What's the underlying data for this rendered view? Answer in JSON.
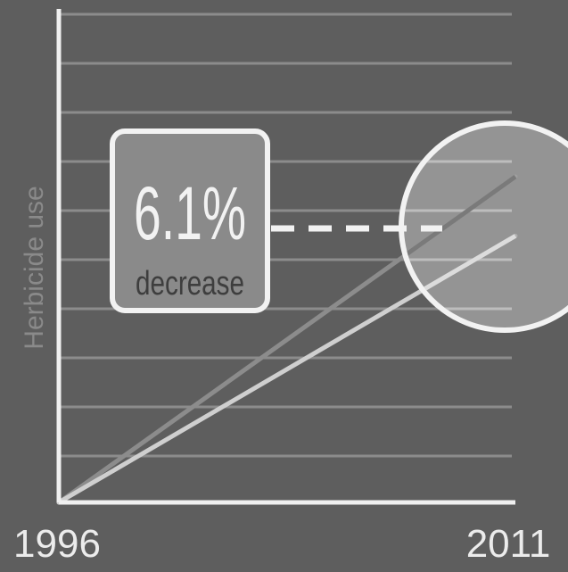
{
  "chart_data": {
    "type": "line",
    "x": [
      1996,
      2011
    ],
    "xlim": [
      1996,
      2011
    ],
    "ylim": [
      0,
      10
    ],
    "ylabel": "Herbicide use",
    "tick_labels": [
      "1996",
      "2011"
    ],
    "grid": true,
    "series": [
      {
        "values": [
          0,
          6.6
        ],
        "color": "#8c8c8c"
      },
      {
        "values": [
          0,
          5.4
        ],
        "color": "#cfcfcf"
      }
    ],
    "annotation": {
      "value": "6.1%",
      "label": "decrease",
      "highlight": "circle at 2011 end of lines"
    },
    "colors": {
      "background": "#5e5e5e",
      "gridline": "#8c8c8c",
      "axis": "#f0f0f0",
      "callout_fill": "#8a8a8a",
      "highlight_circle": "#a4a4a4"
    }
  }
}
